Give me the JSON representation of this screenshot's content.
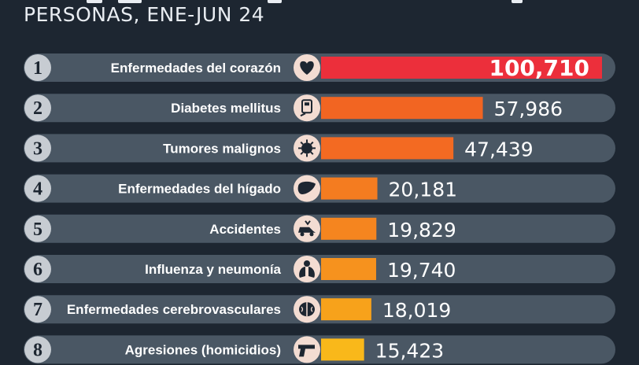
{
  "header": {
    "subtitle": "PERSONAS, ENE-JUN 24"
  },
  "chart_data": {
    "type": "bar",
    "orientation": "horizontal",
    "ranks": [
      "1",
      "2",
      "3",
      "4",
      "5",
      "6",
      "7",
      "8"
    ],
    "categories": [
      "Enfermedades del corazón",
      "Diabetes mellitus",
      "Tumores malignos",
      "Enfermedades del hígado",
      "Accidentes",
      "Influenza y neumonía",
      "Enfermedades cerebrovasculares",
      "Agresiones (homicidios)"
    ],
    "values": [
      100710,
      57986,
      47439,
      20181,
      19829,
      19740,
      18019,
      15423
    ],
    "value_labels": [
      "100,710",
      "57,986",
      "47,439",
      "20,181",
      "19,829",
      "19,740",
      "18,019",
      "15,423"
    ],
    "icons": [
      "heart-icon",
      "glucometer-icon",
      "tumor-cell-icon",
      "liver-icon",
      "car-crash-icon",
      "lungs-icon",
      "brain-icon",
      "gun-icon"
    ],
    "colors": [
      "#ec2f3b",
      "#f26522",
      "#f36a22",
      "#f47c20",
      "#f5851f",
      "#f6921e",
      "#f7a21b",
      "#f9b81a"
    ],
    "xlim": [
      0,
      100710
    ],
    "grid": false,
    "legend": "none"
  }
}
